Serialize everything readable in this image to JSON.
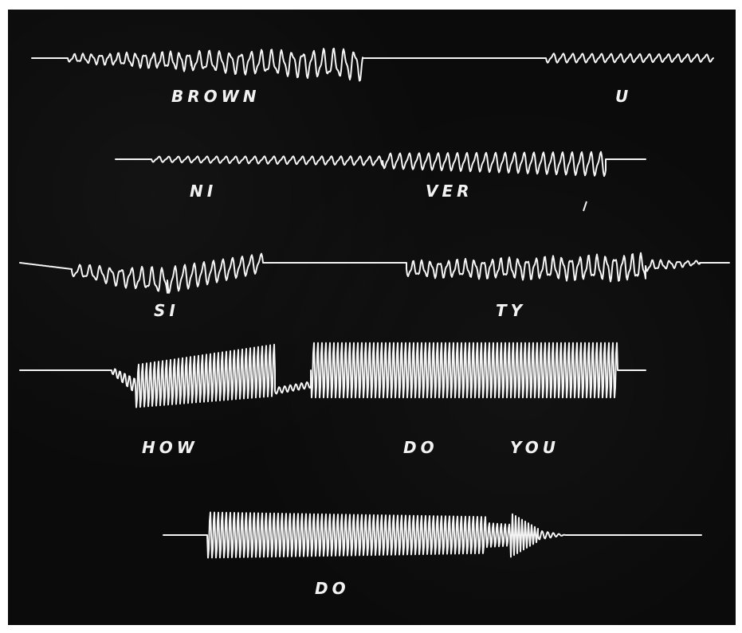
{
  "labels": {
    "brown": "BROWN",
    "u": "U",
    "ni": "NI",
    "ver": "VER",
    "si": "SI",
    "ty": "TY",
    "how": "HOW",
    "do": "DO",
    "you": "YOU",
    "do_bottom": "DO"
  },
  "colors": {
    "background": "#0b0b0b",
    "trace": "#f4f4f4"
  }
}
